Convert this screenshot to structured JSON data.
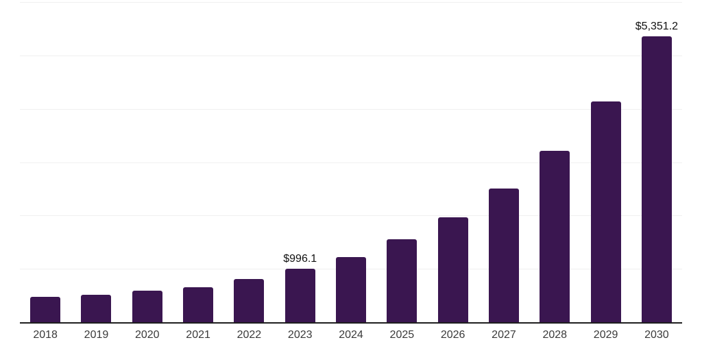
{
  "chart_data": {
    "type": "bar",
    "categories": [
      "2018",
      "2019",
      "2020",
      "2021",
      "2022",
      "2023",
      "2024",
      "2025",
      "2026",
      "2027",
      "2028",
      "2029",
      "2030"
    ],
    "values": [
      475,
      510,
      590,
      650,
      805,
      996.1,
      1220,
      1550,
      1965,
      2500,
      3215,
      4140,
      5351.2
    ],
    "value_labels": [
      "",
      "",
      "",
      "",
      "",
      "$996.1",
      "",
      "",
      "",
      "",
      "",
      "",
      "$5,351.2"
    ],
    "labeled_categories": [
      "2023",
      "2030"
    ],
    "title": "",
    "xlabel": "",
    "ylabel": "",
    "ylim": [
      0,
      6000
    ],
    "gridline_values": [
      1000,
      2000,
      3000,
      4000,
      5000,
      6000
    ],
    "grid": "horizontal",
    "legend_position": "none",
    "y_tick_labels_visible": false
  },
  "colors": {
    "bar": "#3a1650",
    "axis_line": "#1f1f1f",
    "gridline": "#f0f0f0",
    "value_label_text": "#111111",
    "tick_label_text": "#3a3a3a",
    "background": "#ffffff"
  }
}
